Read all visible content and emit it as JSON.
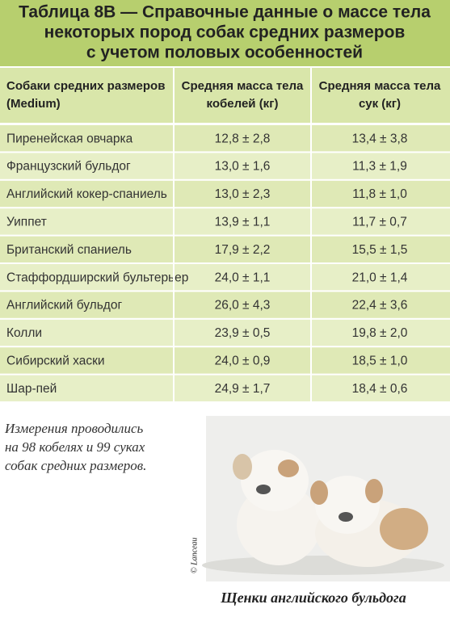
{
  "header": {
    "title": [
      "Таблица 8В — Справочные данные о массе тела",
      "некоторых пород собак средних размеров",
      "с учетом половых особенностей"
    ]
  },
  "table": {
    "columns": [
      [
        "Собаки средних размеров",
        "(Medium)"
      ],
      [
        "Средняя масса тела",
        "кобелей (кг)"
      ],
      [
        "Средняя масса тела",
        "сук (кг)"
      ]
    ],
    "rows": [
      [
        "Пиренейская овчарка",
        "12,8 ± 2,8",
        "13,4 ± 3,8"
      ],
      [
        "Французский бульдог",
        "13,0 ± 1,6",
        "11,3 ± 1,9"
      ],
      [
        "Английский кокер-спаниель",
        "13,0 ± 2,3",
        "11,8 ± 1,0"
      ],
      [
        "Уиппет",
        "13,9 ± 1,1",
        "11,7 ± 0,7"
      ],
      [
        "Британский спаниель",
        "17,9 ± 2,2",
        "15,5 ± 1,5"
      ],
      [
        "Стаффордширский бультерьер",
        "24,0 ± 1,1",
        "21,0 ± 1,4"
      ],
      [
        "Английский бульдог",
        "26,0 ± 4,3",
        "22,4 ± 3,6"
      ],
      [
        "Колли",
        "23,9 ± 0,5",
        "19,8 ± 2,0"
      ],
      [
        "Сибирский хаски",
        "24,0 ± 0,9",
        "18,5 ± 1,0"
      ],
      [
        "Шар-пей",
        "24,9 ± 1,7",
        "18,4 ± 0,6"
      ]
    ]
  },
  "note": [
    "Измерения проводились",
    "на 98 кобелях и 99 суках",
    "собак средних размеров."
  ],
  "photo": {
    "credit": "© Lanceau",
    "caption": "Щенки английского бульдога"
  }
}
